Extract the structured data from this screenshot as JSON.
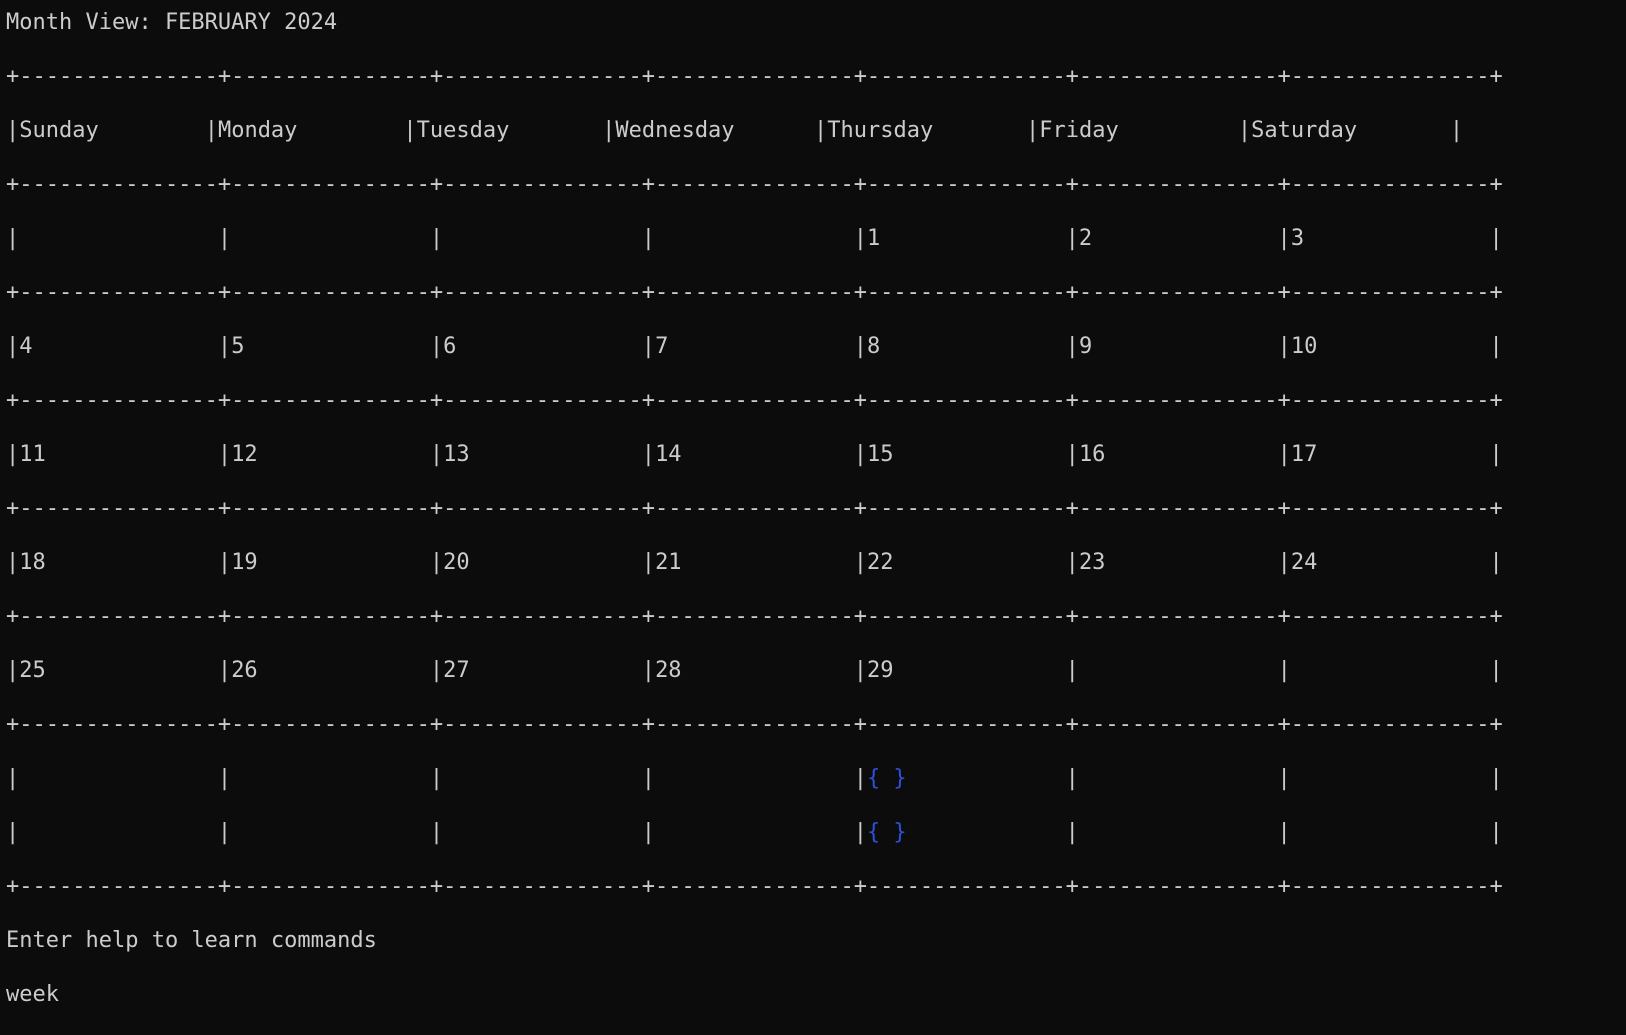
{
  "title": "Month View: FEBRUARY 2024",
  "separator": "+---------------+---------------+---------------+---------------+---------------+---------------+---------------+",
  "weekdays": [
    "Sunday",
    "Monday",
    "Tuesday",
    "Wednesday",
    "Thursday",
    "Friday",
    "Saturday"
  ],
  "weeks": [
    [
      "",
      "",
      "",
      "",
      "1",
      "2",
      "3"
    ],
    [
      "4",
      "5",
      "6",
      "7",
      "8",
      "9",
      "10"
    ],
    [
      "11",
      "12",
      "13",
      "14",
      "15",
      "16",
      "17"
    ],
    [
      "18",
      "19",
      "20",
      "21",
      "22",
      "23",
      "24"
    ],
    [
      "25",
      "26",
      "27",
      "28",
      "29",
      "",
      ""
    ]
  ],
  "extra_rows": [
    [
      "",
      "",
      "",
      "",
      "{ }",
      "",
      ""
    ],
    [
      "",
      "",
      "",
      "",
      "{ }",
      "",
      ""
    ]
  ],
  "help_text": "Enter help to learn commands",
  "command_input": "week",
  "colors": {
    "background": "#0c0c0c",
    "text": "#cccccc",
    "highlight": "#2f4fd8"
  }
}
